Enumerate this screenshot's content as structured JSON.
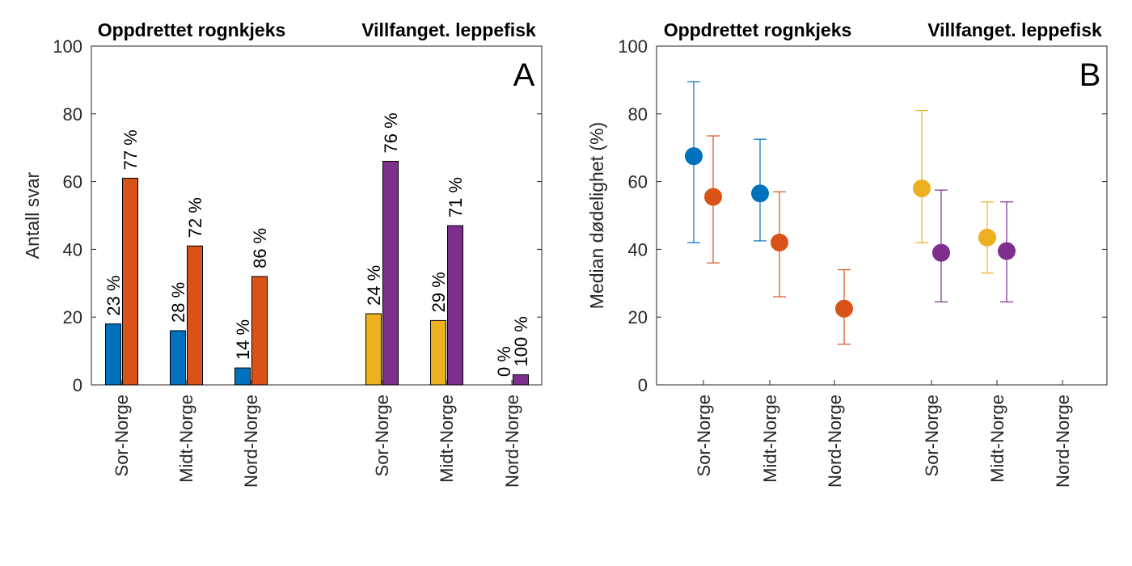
{
  "chart_data": [
    {
      "type": "bar",
      "panel_letter": "A",
      "group_titles": [
        "Oppdrettet rognkjeks",
        "Villfanget. leppefisk"
      ],
      "ylabel": "Antall svar",
      "xlabel": "",
      "ylim": [
        0,
        100
      ],
      "yticks": [
        0,
        20,
        40,
        60,
        80,
        100
      ],
      "grid": false,
      "categories": [
        "Sor-Norge",
        "Midt-Norge",
        "Nord-Norge",
        "Sor-Norge",
        "Midt-Norge",
        "Nord-Norge"
      ],
      "bars": [
        {
          "category_index": 0,
          "slot": "left",
          "value": 18,
          "label": "23 %",
          "color": "#0072BD"
        },
        {
          "category_index": 0,
          "slot": "right",
          "value": 61,
          "label": "77 %",
          "color": "#D95319"
        },
        {
          "category_index": 1,
          "slot": "left",
          "value": 16,
          "label": "28 %",
          "color": "#0072BD"
        },
        {
          "category_index": 1,
          "slot": "right",
          "value": 41,
          "label": "72 %",
          "color": "#D95319"
        },
        {
          "category_index": 2,
          "slot": "left",
          "value": 5,
          "label": "14 %",
          "color": "#0072BD"
        },
        {
          "category_index": 2,
          "slot": "right",
          "value": 32,
          "label": "86 %",
          "color": "#D95319"
        },
        {
          "category_index": 3,
          "slot": "left",
          "value": 21,
          "label": "24 %",
          "color": "#EDB120"
        },
        {
          "category_index": 3,
          "slot": "right",
          "value": 66,
          "label": "76 %",
          "color": "#7E2F8E"
        },
        {
          "category_index": 4,
          "slot": "left",
          "value": 19,
          "label": "29 %",
          "color": "#EDB120"
        },
        {
          "category_index": 4,
          "slot": "right",
          "value": 47,
          "label": "71 %",
          "color": "#7E2F8E"
        },
        {
          "category_index": 5,
          "slot": "left",
          "value": 0,
          "label": "0 %",
          "color": "#EDB120"
        },
        {
          "category_index": 5,
          "slot": "right",
          "value": 3,
          "label": "100 %",
          "color": "#7E2F8E"
        }
      ]
    },
    {
      "type": "scatter",
      "panel_letter": "B",
      "group_titles": [
        "Oppdrettet rognkjeks",
        "Villfanget. leppefisk"
      ],
      "ylabel": "Median dødelighet (%)",
      "xlabel": "",
      "ylim": [
        0,
        100
      ],
      "yticks": [
        0,
        20,
        40,
        60,
        80,
        100
      ],
      "grid": false,
      "categories": [
        "Sor-Norge",
        "Midt-Norge",
        "Nord-Norge",
        "Sor-Norge",
        "Midt-Norge",
        "Nord-Norge"
      ],
      "points": [
        {
          "category_index": 0,
          "slot": "left",
          "y": 67.5,
          "low": 42,
          "high": 89.5,
          "color": "#0072BD"
        },
        {
          "category_index": 0,
          "slot": "right",
          "y": 55.5,
          "low": 36,
          "high": 73.5,
          "color": "#D95319"
        },
        {
          "category_index": 1,
          "slot": "left",
          "y": 56.5,
          "low": 42.5,
          "high": 72.5,
          "color": "#0072BD"
        },
        {
          "category_index": 1,
          "slot": "right",
          "y": 42,
          "low": 26,
          "high": 57,
          "color": "#D95319"
        },
        {
          "category_index": 2,
          "slot": "right",
          "y": 22.5,
          "low": 12,
          "high": 34,
          "color": "#D95319"
        },
        {
          "category_index": 3,
          "slot": "left",
          "y": 58,
          "low": 42,
          "high": 81,
          "color": "#EDB120"
        },
        {
          "category_index": 3,
          "slot": "right",
          "y": 39,
          "low": 24.5,
          "high": 57.5,
          "color": "#7E2F8E"
        },
        {
          "category_index": 4,
          "slot": "left",
          "y": 43.5,
          "low": 33,
          "high": 54,
          "color": "#EDB120"
        },
        {
          "category_index": 4,
          "slot": "right",
          "y": 39.5,
          "low": 24.5,
          "high": 54,
          "color": "#7E2F8E"
        }
      ]
    }
  ]
}
